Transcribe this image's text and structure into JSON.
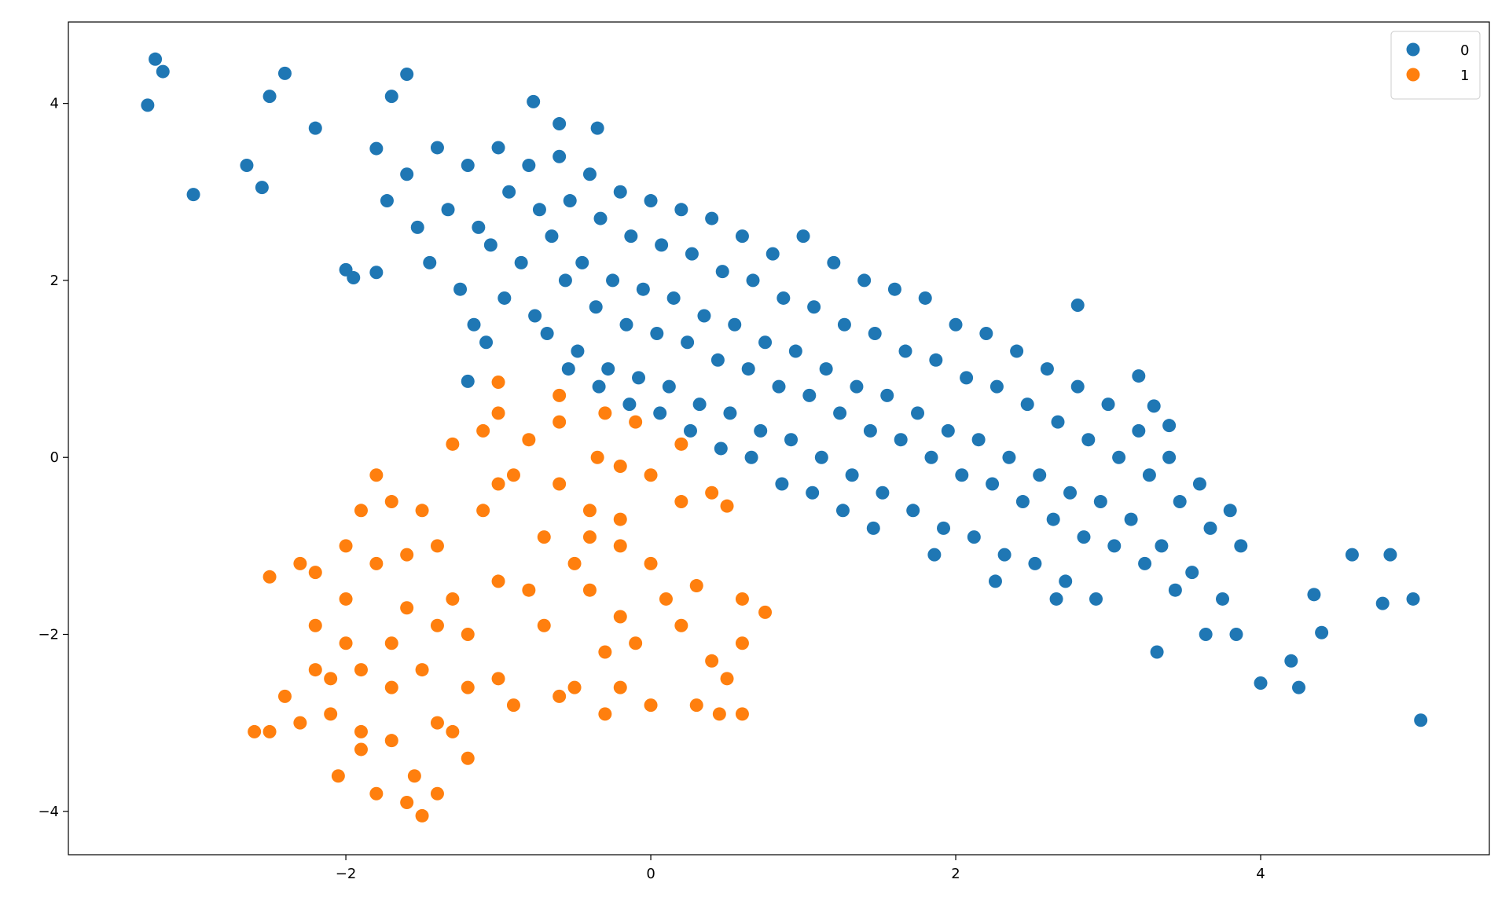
{
  "chart_data": {
    "type": "scatter",
    "xlim": [
      -3.82,
      5.5
    ],
    "ylim": [
      -4.49,
      4.92
    ],
    "xticks": [
      {
        "value": -2,
        "label": "−2"
      },
      0,
      2,
      4
    ],
    "yticks": [
      {
        "value": -4,
        "label": "−4"
      },
      {
        "value": -2,
        "label": "−2"
      },
      0,
      2,
      4
    ],
    "legend": "upper right",
    "series": [
      {
        "name": "0",
        "color": "#1f77b4",
        "x": [
          -1.8,
          -1.73,
          -1.6,
          -1.53,
          -1.4,
          -1.33,
          -1.45,
          -1.2,
          -1.13,
          -1.25,
          -1.16,
          -1.0,
          -0.93,
          -1.05,
          -0.96,
          -1.08,
          -0.8,
          -0.73,
          -0.85,
          -0.76,
          -0.6,
          -0.53,
          -0.65,
          -0.56,
          -0.68,
          -0.54,
          -0.4,
          -0.33,
          -0.45,
          -0.36,
          -0.48,
          -0.34,
          -0.2,
          -0.13,
          -0.25,
          -0.16,
          -0.28,
          -0.14,
          0,
          0.07,
          -0.05,
          0.04,
          -0.08,
          0.06,
          0.2,
          0.27,
          0.15,
          0.24,
          0.12,
          0.26,
          0.4,
          0.47,
          0.35,
          0.44,
          0.32,
          0.46,
          0.6,
          0.67,
          0.55,
          0.64,
          0.52,
          0.66,
          0.8,
          0.87,
          0.75,
          0.84,
          0.72,
          0.86,
          1.0,
          1.07,
          0.95,
          1.04,
          0.92,
          1.06,
          1.2,
          1.27,
          1.15,
          1.24,
          1.12,
          1.26,
          1.4,
          1.47,
          1.35,
          1.44,
          1.32,
          1.46,
          1.6,
          1.67,
          1.55,
          1.64,
          1.52,
          1.8,
          1.87,
          1.75,
          1.84,
          1.72,
          1.86,
          2.0,
          2.07,
          1.95,
          2.04,
          1.92,
          2.2,
          2.27,
          2.15,
          2.24,
          2.12,
          2.26,
          2.4,
          2.47,
          2.35,
          2.44,
          2.32,
          2.6,
          2.67,
          2.55,
          2.64,
          2.52,
          2.66,
          2.8,
          2.87,
          2.75,
          2.84,
          2.72,
          3.0,
          3.07,
          2.95,
          3.04,
          2.92,
          3.2,
          3.27,
          3.15,
          3.24,
          3.4,
          3.47,
          3.35,
          3.44,
          3.32,
          3.6,
          3.67,
          3.55,
          3.64,
          3.8,
          3.87,
          3.75,
          3.84,
          -3.3,
          -3.25,
          -3.2,
          -2.5,
          -2.4,
          -2.65,
          -2.55,
          -3.0,
          -1.6,
          -1.7,
          -2.2,
          -2.0,
          -1.95,
          -1.8,
          -0.77,
          -0.6,
          -0.35,
          5.05,
          5.0,
          4.8,
          4.85,
          4.6,
          4.25,
          4.2,
          4.0,
          4.4,
          4.35,
          2.8,
          3.2,
          3.3,
          3.4,
          -1.2
        ],
        "values": [
          3.49,
          2.9,
          3.2,
          2.6,
          3.5,
          2.8,
          2.2,
          3.3,
          2.6,
          1.9,
          1.5,
          3.5,
          3.0,
          2.4,
          1.8,
          1.3,
          3.3,
          2.8,
          2.2,
          1.6,
          3.4,
          2.9,
          2.5,
          2.0,
          1.4,
          1.0,
          3.2,
          2.7,
          2.2,
          1.7,
          1.2,
          0.8,
          3.0,
          2.5,
          2.0,
          1.5,
          1.0,
          0.6,
          2.9,
          2.4,
          1.9,
          1.4,
          0.9,
          0.5,
          2.8,
          2.3,
          1.8,
          1.3,
          0.8,
          0.3,
          2.7,
          2.1,
          1.6,
          1.1,
          0.6,
          0.1,
          2.5,
          2.0,
          1.5,
          1.0,
          0.5,
          0.0,
          2.3,
          1.8,
          1.3,
          0.8,
          0.3,
          -0.3,
          2.5,
          1.7,
          1.2,
          0.7,
          0.2,
          -0.4,
          2.2,
          1.5,
          1.0,
          0.5,
          0.0,
          -0.6,
          2.0,
          1.4,
          0.8,
          0.3,
          -0.2,
          -0.8,
          1.9,
          1.2,
          0.7,
          0.2,
          -0.4,
          1.8,
          1.1,
          0.5,
          0.0,
          -0.6,
          -1.1,
          1.5,
          0.9,
          0.3,
          -0.2,
          -0.8,
          1.4,
          0.8,
          0.2,
          -0.3,
          -0.9,
          -1.4,
          1.2,
          0.6,
          0.0,
          -0.5,
          -1.1,
          1.0,
          0.4,
          -0.2,
          -0.7,
          -1.2,
          -1.6,
          0.8,
          0.2,
          -0.4,
          -0.9,
          -1.4,
          0.6,
          0.0,
          -0.5,
          -1.0,
          -1.6,
          0.3,
          -0.2,
          -0.7,
          -1.2,
          0.0,
          -0.5,
          -1.0,
          -1.5,
          -2.2,
          -0.3,
          -0.8,
          -1.3,
          -2.0,
          -0.6,
          -1.0,
          -1.6,
          -2.0,
          3.98,
          4.5,
          4.36,
          4.08,
          4.34,
          3.3,
          3.05,
          2.97,
          4.33,
          4.08,
          3.72,
          2.12,
          2.03,
          2.09,
          4.02,
          3.77,
          3.72,
          -2.97,
          -1.6,
          -1.65,
          -1.1,
          -1.1,
          -2.6,
          -2.3,
          -2.55,
          -1.98,
          -1.55,
          1.72,
          0.92,
          0.58,
          0.36,
          0.86
        ]
      },
      {
        "name": "1",
        "color": "#ff7f0e",
        "x": [
          -1.5,
          -1.6,
          -1.8,
          -2.05,
          -2.5,
          -2.4,
          -2.2,
          -1.9,
          -1.5,
          -1.0,
          -0.5,
          -0.2,
          0.3,
          0.45,
          0.5,
          0.6,
          0.75,
          0.6,
          0.3,
          0.0,
          -0.2,
          -0.4,
          -0.7,
          -0.4,
          -0.6,
          -0.2,
          0.0,
          0.2,
          -0.1,
          -0.3,
          -0.35,
          -0.6,
          -1.0,
          -1.0,
          -1.1,
          -1.3,
          -1.0,
          -1.1,
          -1.5,
          -1.7,
          -1.8,
          -1.9,
          -2.0,
          -2.3,
          -2.5,
          -2.2,
          -1.8,
          -2.0,
          -2.2,
          -2.0,
          -1.7,
          -1.6,
          -1.3,
          -1.0,
          -0.8,
          -0.4,
          -0.7,
          -1.2,
          -1.4,
          -1.2,
          -1.4,
          -1.7,
          -1.9,
          -2.1,
          -2.3,
          -2.6,
          -1.9,
          -1.2,
          -1.3,
          -0.9,
          -0.6,
          -0.3,
          -0.2,
          -0.5,
          0.1,
          0.2,
          0.4,
          0.0,
          0.2,
          0.4,
          0.5,
          -0.2,
          -0.6,
          -0.9,
          -1.4,
          -1.6,
          -2.1,
          -1.55,
          -1.4,
          -1.7,
          -0.1,
          -0.3,
          0.6,
          -0.8
        ],
        "values": [
          -4.05,
          -3.9,
          -3.8,
          -3.6,
          -3.1,
          -2.7,
          -2.4,
          -2.4,
          -2.4,
          -2.5,
          -2.6,
          -2.6,
          -2.8,
          -2.9,
          -2.5,
          -2.1,
          -1.75,
          -1.6,
          -1.45,
          -1.2,
          -1.0,
          -0.9,
          -0.9,
          -0.6,
          -0.3,
          -0.1,
          -0.2,
          0.15,
          0.4,
          0.5,
          0.0,
          0.7,
          0.85,
          0.5,
          0.3,
          0.15,
          -0.3,
          -0.6,
          -0.6,
          -0.5,
          -0.2,
          -0.6,
          -1.0,
          -1.2,
          -1.35,
          -1.3,
          -1.2,
          -1.6,
          -1.9,
          -2.1,
          -2.1,
          -1.7,
          -1.6,
          -1.4,
          -1.5,
          -1.5,
          -1.9,
          -2.0,
          -1.9,
          -2.6,
          -3.0,
          -3.2,
          -3.1,
          -2.9,
          -3.0,
          -3.1,
          -3.3,
          -3.4,
          -3.1,
          -2.8,
          -2.7,
          -2.2,
          -1.8,
          -1.2,
          -1.6,
          -1.9,
          -2.3,
          -2.8,
          -0.5,
          -0.4,
          -0.55,
          -0.7,
          0.4,
          -0.2,
          -1.0,
          -1.1,
          -2.5,
          -3.6,
          -3.8,
          -2.6,
          -2.1,
          -2.9,
          -2.9,
          0.2
        ]
      }
    ]
  }
}
